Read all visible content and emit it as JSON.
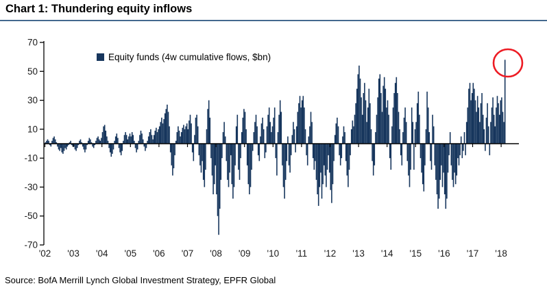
{
  "title": "Chart 1: Thundering equity inflows",
  "source": "Source: BofA Merrill Lynch Global Investment Strategy, EPFR Global",
  "legend": {
    "label": "Equity funds (4w cumulative flows, $bn)"
  },
  "colors": {
    "title_rule": "#44698e",
    "background": "#ffffff"
  },
  "chart_data": {
    "type": "bar",
    "title": "Chart 1: Thundering equity inflows",
    "series_name": "Equity funds (4w cumulative flows, $bn)",
    "unit": "$bn",
    "ylabel": "",
    "xlabel": "",
    "ylim": [
      -70,
      70
    ],
    "y_ticks": [
      70,
      50,
      30,
      10,
      -10,
      -30,
      -50,
      -70
    ],
    "x_tick_labels": [
      "'02",
      "'03",
      "'04",
      "'05",
      "'06",
      "'07",
      "'08",
      "'09",
      "'10",
      "'11",
      "'12",
      "'13",
      "'14",
      "'15",
      "'16",
      "'17",
      "'18"
    ],
    "x_start_year": 2002,
    "points_per_year": 26,
    "grid": "off",
    "legend_position": "top-left-inside",
    "bar_color": "#17365d",
    "axis_color": "#000000",
    "text_color": "#1a1a1a",
    "annotation_color": "#ed1c24",
    "annotation": {
      "shape": "circle",
      "meaning": "record final inflow circled",
      "circled_value": 58
    },
    "values": [
      1,
      2,
      3,
      2,
      -1,
      -2,
      2,
      4,
      5,
      3,
      1,
      -2,
      -4,
      -5,
      -3,
      -6,
      -7,
      -5,
      -3,
      -4,
      -2,
      -1,
      1,
      2,
      -1,
      -2,
      -2,
      -4,
      -5,
      -3,
      -1,
      2,
      3,
      1,
      -2,
      -4,
      -6,
      -4,
      -1,
      2,
      4,
      3,
      1,
      -2,
      -3,
      -1,
      2,
      4,
      5,
      3,
      2,
      4,
      8,
      12,
      13,
      9,
      5,
      2,
      -3,
      -6,
      -9,
      -7,
      -4,
      2,
      5,
      7,
      4,
      -3,
      -6,
      -8,
      -5,
      2,
      6,
      8,
      6,
      3,
      5,
      7,
      5,
      8,
      6,
      2,
      -3,
      -6,
      -4,
      2,
      6,
      9,
      7,
      3,
      -2,
      -5,
      -3,
      2,
      5,
      8,
      10,
      6,
      3,
      6,
      9,
      11,
      8,
      10,
      12,
      15,
      18,
      14,
      17,
      21,
      24,
      27,
      22,
      12,
      -6,
      -15,
      -22,
      -17,
      -8,
      2,
      8,
      12,
      9,
      5,
      8,
      11,
      13,
      10,
      12,
      14,
      10,
      16,
      20,
      14,
      -6,
      -12,
      6,
      18,
      20,
      12,
      -8,
      -15,
      -20,
      -12,
      -25,
      -30,
      -18,
      10,
      24,
      30,
      18,
      -10,
      -22,
      -35,
      -28,
      -15,
      -35,
      -50,
      -63,
      -45,
      -25,
      -10,
      8,
      15,
      5,
      -12,
      -25,
      -30,
      -20,
      -8,
      -28,
      -38,
      -30,
      -15,
      12,
      20,
      -18,
      -25,
      -10,
      8,
      18,
      24,
      22,
      10,
      -15,
      -28,
      -35,
      -30,
      -18,
      -5,
      8,
      15,
      20,
      12,
      -8,
      -12,
      5,
      14,
      18,
      10,
      -10,
      -6,
      12,
      20,
      25,
      15,
      8,
      12,
      18,
      25,
      -10,
      -22,
      8,
      20,
      30,
      22,
      -15,
      -30,
      -38,
      -25,
      -12,
      5,
      -15,
      -20,
      -8,
      6,
      15,
      10,
      -6,
      12,
      22,
      28,
      33,
      25,
      30,
      33,
      25,
      10,
      -8,
      -15,
      5,
      12,
      22,
      15,
      -10,
      -18,
      -12,
      -25,
      -35,
      -43,
      -30,
      -20,
      -38,
      -28,
      -15,
      -22,
      -30,
      -18,
      -8,
      -20,
      -32,
      -41,
      -28,
      -12,
      6,
      14,
      18,
      12,
      -8,
      -15,
      -10,
      5,
      12,
      8,
      -12,
      -22,
      -30,
      -18,
      -8,
      10,
      16,
      12,
      20,
      28,
      38,
      48,
      54,
      45,
      32,
      20,
      35,
      42,
      30,
      15,
      25,
      38,
      28,
      10,
      -12,
      -22,
      -15,
      8,
      20,
      32,
      45,
      48,
      35,
      22,
      40,
      46,
      38,
      25,
      30,
      20,
      -10,
      -18,
      12,
      25,
      35,
      42,
      46,
      35,
      22,
      10,
      -8,
      -15,
      8,
      18,
      25,
      15,
      -12,
      -22,
      -30,
      -18,
      25,
      15,
      -18,
      10,
      15,
      28,
      36,
      20,
      -10,
      -20,
      -28,
      -33,
      -15,
      10,
      36,
      25,
      8,
      -12,
      -18,
      20,
      12,
      -15,
      -25,
      -35,
      -45,
      -38,
      -25,
      -15,
      -30,
      -20,
      -35,
      -45,
      -38,
      -20,
      -8,
      8,
      -15,
      -25,
      -30,
      -20,
      -28,
      -22,
      -10,
      -15,
      -8,
      5,
      -10,
      -5,
      8,
      -8,
      15,
      25,
      38,
      42,
      30,
      35,
      42,
      38,
      30,
      22,
      33,
      25,
      15,
      28,
      35,
      20,
      10,
      -5,
      18,
      28,
      12,
      -8,
      15,
      25,
      32,
      20,
      12,
      25,
      33,
      28,
      20,
      30,
      32,
      22,
      15,
      58
    ]
  }
}
